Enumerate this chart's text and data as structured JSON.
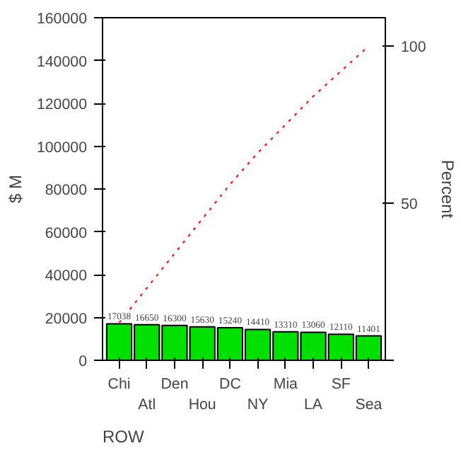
{
  "chart_data": {
    "type": "bar",
    "xlabel": "ROW",
    "ylabel": "$ M",
    "y2label": "Percent",
    "categories": [
      "Chi",
      "Atl",
      "Den",
      "Hou",
      "DC",
      "NY",
      "Mia",
      "LA",
      "SF",
      "Sea"
    ],
    "series": [
      {
        "color": "#00e000",
        "values": [
          17038,
          16650,
          16300,
          15630,
          15240,
          14410,
          13310,
          13060,
          12110,
          11401
        ],
        "data_labels": true
      },
      {
        "type": "line",
        "axis": "y2",
        "color": "#ff0000",
        "line_style": "dotted",
        "values": [
          12,
          23,
          34,
          45,
          56,
          66,
          75,
          84,
          92,
          100
        ]
      }
    ],
    "ylim": [
      0,
      160000
    ],
    "yticks": [
      0,
      20000,
      40000,
      60000,
      80000,
      100000,
      120000,
      140000,
      160000
    ],
    "y2lim": [
      0,
      109
    ],
    "y2ticks": [
      {
        "value": 0,
        "label": null
      },
      50,
      100
    ],
    "grid": false
  }
}
